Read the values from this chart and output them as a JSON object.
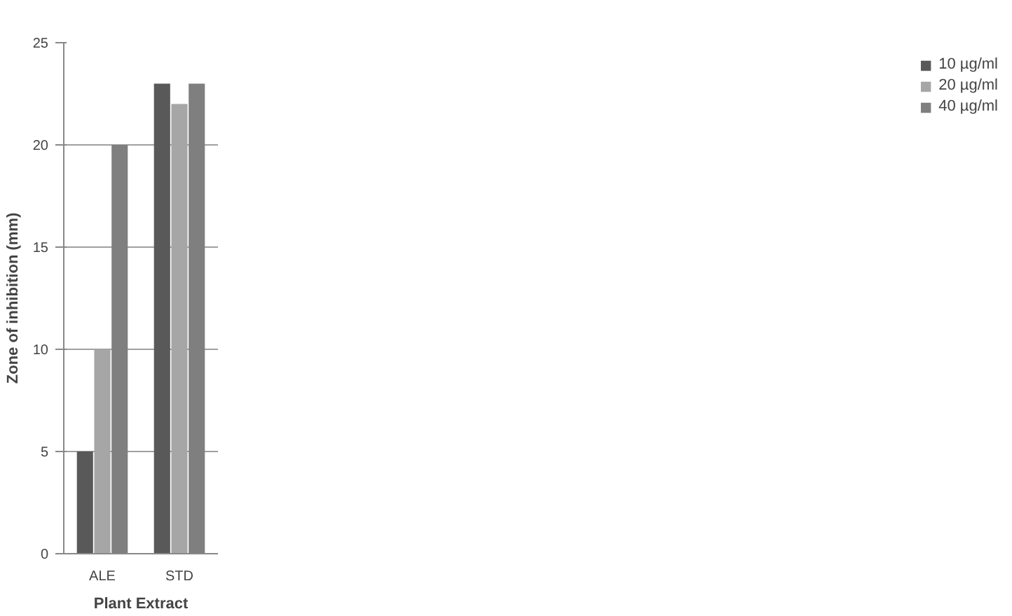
{
  "chart_data": {
    "type": "bar",
    "xlabel": "Plant Extract",
    "ylabel": "Zone of inhibition (mm)",
    "categories": [
      "ALE",
      "STD"
    ],
    "series": [
      {
        "name": "10 µg/ml",
        "color": "#595959",
        "values": [
          5,
          23
        ]
      },
      {
        "name": "20 µg/ml",
        "color": "#a6a6a6",
        "values": [
          10,
          22
        ]
      },
      {
        "name": "40 µg/ml",
        "color": "#7f7f7f",
        "values": [
          20,
          23
        ]
      }
    ],
    "ylim": [
      0,
      25
    ],
    "yticks": [
      0,
      5,
      10,
      15,
      20,
      25
    ],
    "grid": "y",
    "legend": "right"
  }
}
